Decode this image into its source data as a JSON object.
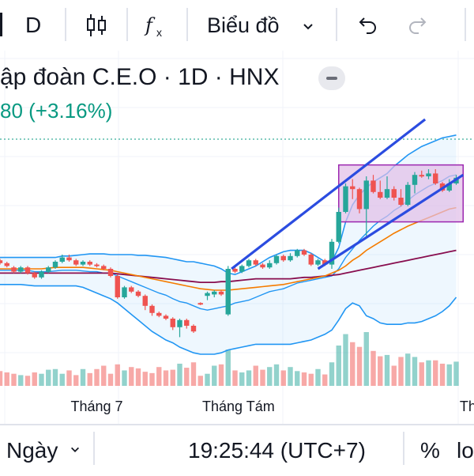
{
  "toolbar": {
    "interval": "D",
    "chart_menu_label": "Biểu đồ"
  },
  "legend": {
    "title": "ập đoàn C.E.O · 1D · HNX",
    "change": "80 (+3.16%)"
  },
  "bottom_bar": {
    "range_label": "Ngày",
    "clock": "19:25:44 (UTC+7)",
    "percent_label": "%",
    "log_label": "lo"
  },
  "colors": {
    "up": "#26a69a",
    "down": "#ef5350",
    "bollinger": "#2196f3",
    "channel": "#2b4ce0",
    "ma_orange": "#f57c00",
    "ma_maroon": "#880e4f",
    "box_fill": "#e1bee7",
    "box_border": "#9c27b0"
  },
  "chart_data": {
    "type": "candlestick",
    "title": "ập đoàn C.E.O · 1D · HNX",
    "x_tick_labels": [
      "Tháng 7",
      "Tháng Tám",
      "Tháng"
    ],
    "candles": [
      [
        0.6,
        0.4,
        0.7,
        0.3
      ],
      [
        0.4,
        0.2,
        0.5,
        0.1
      ],
      [
        0.1,
        -0.2,
        0.2,
        -0.3
      ],
      [
        -0.2,
        0.1,
        0.2,
        -0.3
      ],
      [
        0.1,
        -0.3,
        0.2,
        -0.4
      ],
      [
        -0.3,
        -0.6,
        -0.2,
        -0.7
      ],
      [
        -0.6,
        -0.2,
        -0.1,
        -0.7
      ],
      [
        -0.2,
        0.1,
        0.2,
        -0.3
      ],
      [
        0.1,
        0.5,
        0.6,
        0.0
      ],
      [
        0.5,
        0.8,
        1.0,
        0.4
      ],
      [
        0.8,
        0.6,
        1.0,
        0.5
      ],
      [
        0.6,
        0.3,
        0.7,
        0.2
      ],
      [
        0.3,
        0.5,
        0.6,
        0.2
      ],
      [
        0.5,
        0.3,
        0.6,
        0.2
      ],
      [
        0.3,
        0.2,
        0.4,
        0.1
      ],
      [
        0.2,
        0.0,
        0.3,
        -0.1
      ],
      [
        0.0,
        -0.5,
        0.1,
        -0.6
      ],
      [
        -0.5,
        -2.0,
        -0.4,
        -2.1
      ],
      [
        -2.0,
        -1.3,
        -1.2,
        -2.1
      ],
      [
        -1.3,
        -1.6,
        -1.2,
        -1.7
      ],
      [
        -1.6,
        -1.9,
        -1.5,
        -2.0
      ],
      [
        -1.9,
        -2.6,
        -1.8,
        -2.9
      ],
      [
        -2.6,
        -3.1,
        -2.5,
        -3.3
      ],
      [
        -3.1,
        -3.3,
        -3.0,
        -3.4
      ],
      [
        -3.3,
        -3.5,
        -3.2,
        -3.6
      ],
      [
        -3.5,
        -4.1,
        -3.4,
        -4.3
      ],
      [
        -4.1,
        -3.6,
        -3.5,
        -4.8
      ],
      [
        -3.6,
        -4.0,
        -3.5,
        -4.2
      ],
      [
        -4.0,
        -4.4,
        -3.9,
        -4.5
      ],
      [
        -2.4,
        -2.5,
        -2.35,
        -2.55
      ],
      [
        -1.9,
        -1.7,
        -1.6,
        -2.2
      ],
      [
        -1.8,
        -1.6,
        -1.5,
        -2.0
      ],
      [
        -1.6,
        -1.8,
        -1.5,
        -1.9
      ],
      [
        -3.2,
        0.0,
        0.2,
        -3.3
      ],
      [
        0.0,
        -0.2,
        0.1,
        -0.3
      ],
      [
        -0.2,
        0.2,
        0.3,
        -0.3
      ],
      [
        0.2,
        0.6,
        0.7,
        0.1
      ],
      [
        0.6,
        0.3,
        0.7,
        0.2
      ],
      [
        0.3,
        0.1,
        0.4,
        0.0
      ],
      [
        0.1,
        0.4,
        0.6,
        0.0
      ],
      [
        0.4,
        0.9,
        1.0,
        0.3
      ],
      [
        0.9,
        0.6,
        1.0,
        0.5
      ],
      [
        0.6,
        0.9,
        1.1,
        0.5
      ],
      [
        0.9,
        1.3,
        1.4,
        0.8
      ],
      [
        1.3,
        1.0,
        1.4,
        0.9
      ],
      [
        1.0,
        0.3,
        1.1,
        0.2
      ],
      [
        0.3,
        0.6,
        0.7,
        0.2
      ],
      [
        0.6,
        0.3,
        0.7,
        0.2
      ],
      [
        0.3,
        1.9,
        2.1,
        0.0
      ],
      [
        1.9,
        4.0,
        4.3,
        1.8
      ],
      [
        4.0,
        5.8,
        6.0,
        3.9
      ],
      [
        5.8,
        5.6,
        6.3,
        4.9
      ],
      [
        5.6,
        4.2,
        5.7,
        3.9
      ],
      [
        4.2,
        6.2,
        6.5,
        2.3
      ],
      [
        6.2,
        5.4,
        6.6,
        5.3
      ],
      [
        5.4,
        5.0,
        6.2,
        4.9
      ],
      [
        5.0,
        5.6,
        6.5,
        4.9
      ],
      [
        5.6,
        5.0,
        5.8,
        4.8
      ],
      [
        5.0,
        4.5,
        5.6,
        4.4
      ],
      [
        4.5,
        5.9,
        6.1,
        4.4
      ],
      [
        5.9,
        6.6,
        6.8,
        5.3
      ],
      [
        6.6,
        6.5,
        6.9,
        6.4
      ],
      [
        6.5,
        6.7,
        7.0,
        6.3
      ],
      [
        6.7,
        6.0,
        7.0,
        5.9
      ],
      [
        6.0,
        5.5,
        6.1,
        5.4
      ],
      [
        5.5,
        6.0,
        6.3,
        5.4
      ],
      [
        6.0,
        6.4,
        6.6,
        5.9
      ]
    ],
    "volume": [
      2.2,
      2.0,
      1.8,
      1.6,
      1.5,
      2.0,
      1.8,
      2.4,
      2.5,
      1.8,
      2.3,
      1.6,
      2.5,
      1.9,
      2.5,
      3.0,
      1.8,
      3.2,
      2.3,
      2.8,
      2.6,
      2.1,
      1.9,
      2.8,
      2.3,
      2.4,
      3.3,
      2.7,
      3.5,
      1.5,
      1.8,
      3.0,
      3.2,
      5.4,
      2.3,
      2.0,
      2.3,
      3.0,
      2.4,
      2.8,
      3.2,
      2.3,
      2.8,
      2.2,
      2.0,
      1.8,
      2.5,
      1.7,
      3.5,
      6.0,
      7.7,
      6.5,
      5.8,
      8.0,
      5.2,
      4.4,
      4.6,
      3.0,
      4.3,
      4.8,
      4.3,
      3.5,
      3.8,
      3.8,
      3.3,
      3.2,
      3.6
    ],
    "bollinger_upper": [
      0.8,
      0.8,
      0.8,
      0.8,
      0.8,
      0.8,
      0.8,
      0.8,
      0.8,
      0.9,
      0.9,
      0.95,
      1.0,
      1.05,
      1.05,
      1.05,
      1.0,
      1.0,
      1.0,
      1.0,
      0.95,
      0.95,
      0.9,
      0.85,
      0.8,
      0.7,
      0.6,
      0.5,
      0.5,
      0.4,
      0.3,
      0.2,
      0.0,
      -0.3,
      -0.4,
      -0.2,
      0.0,
      0.2,
      0.5,
      0.8,
      1.0,
      1.2,
      1.3,
      1.3,
      1.3,
      1.1,
      0.8,
      0.5,
      0.5,
      1.5,
      3.3,
      4.5,
      5.2,
      5.7,
      6.1,
      6.4,
      6.7,
      7.2,
      7.6,
      8.0,
      8.3,
      8.6,
      8.8,
      9.0,
      9.2,
      9.3,
      9.4
    ],
    "bollinger_mid": [
      -0.1,
      -0.1,
      -0.1,
      -0.1,
      -0.1,
      -0.2,
      -0.2,
      -0.2,
      -0.15,
      -0.1,
      -0.1,
      -0.1,
      -0.15,
      -0.2,
      -0.2,
      -0.3,
      -0.3,
      -0.5,
      -0.7,
      -0.9,
      -1.1,
      -1.3,
      -1.5,
      -1.7,
      -1.85,
      -2.1,
      -2.3,
      -2.4,
      -2.6,
      -2.8,
      -2.9,
      -2.8,
      -2.7,
      -2.6,
      -2.4,
      -2.3,
      -2.2,
      -2.0,
      -1.8,
      -1.6,
      -1.5,
      -1.4,
      -1.2,
      -1.0,
      -0.9,
      -0.8,
      -0.7,
      -0.6,
      -0.5,
      0.0,
      0.8,
      1.4,
      2.0,
      2.5,
      3.0,
      3.4,
      3.7,
      4.1,
      4.4,
      4.8,
      5.2,
      5.5,
      5.8,
      6.0,
      6.2,
      6.5,
      6.6
    ],
    "bollinger_lower": [
      -1.1,
      -1.1,
      -1.1,
      -1.1,
      -1.15,
      -1.2,
      -1.2,
      -1.2,
      -1.2,
      -1.2,
      -1.2,
      -1.2,
      -1.3,
      -1.5,
      -1.7,
      -1.9,
      -2.1,
      -2.4,
      -2.8,
      -3.2,
      -3.6,
      -4.0,
      -4.4,
      -4.7,
      -5.0,
      -5.2,
      -5.5,
      -5.7,
      -5.9,
      -6.0,
      -6.0,
      -6.0,
      -5.9,
      -5.7,
      -5.6,
      -5.5,
      -5.4,
      -5.3,
      -5.3,
      -5.3,
      -5.3,
      -5.3,
      -5.3,
      -5.2,
      -5.1,
      -5.0,
      -4.8,
      -4.6,
      -4.3,
      -3.6,
      -2.8,
      -2.4,
      -2.6,
      -3.3,
      -3.5,
      -3.8,
      -3.9,
      -3.9,
      -3.9,
      -3.8,
      -3.8,
      -3.7,
      -3.5,
      -3.3,
      -3.0,
      -2.6,
      -2.0
    ],
    "ma_orange": [
      0.0,
      0.0,
      0.0,
      0.0,
      0.0,
      0.0,
      0.0,
      0.05,
      0.1,
      0.1,
      0.1,
      0.1,
      0.1,
      0.05,
      0.0,
      -0.05,
      -0.1,
      -0.2,
      -0.3,
      -0.4,
      -0.5,
      -0.6,
      -0.7,
      -0.8,
      -0.9,
      -1.0,
      -1.1,
      -1.2,
      -1.3,
      -1.4,
      -1.45,
      -1.5,
      -1.5,
      -1.5,
      -1.45,
      -1.4,
      -1.35,
      -1.3,
      -1.25,
      -1.2,
      -1.15,
      -1.1,
      -1.0,
      -0.9,
      -0.8,
      -0.7,
      -0.6,
      -0.5,
      -0.3,
      -0.1,
      0.2,
      0.6,
      0.9,
      1.3,
      1.6,
      1.9,
      2.2,
      2.5,
      2.75,
      3.0,
      3.2,
      3.4,
      3.6,
      3.8,
      4.0,
      4.2,
      4.3
    ],
    "ma_maroon": [
      -0.3,
      -0.3,
      -0.3,
      -0.3,
      -0.3,
      -0.3,
      -0.3,
      -0.3,
      -0.3,
      -0.3,
      -0.3,
      -0.3,
      -0.3,
      -0.3,
      -0.3,
      -0.3,
      -0.3,
      -0.35,
      -0.4,
      -0.45,
      -0.5,
      -0.55,
      -0.6,
      -0.65,
      -0.7,
      -0.75,
      -0.8,
      -0.85,
      -0.9,
      -0.95,
      -0.95,
      -0.95,
      -0.9,
      -0.9,
      -0.85,
      -0.8,
      -0.75,
      -0.7,
      -0.7,
      -0.7,
      -0.7,
      -0.7,
      -0.7,
      -0.65,
      -0.6,
      -0.6,
      -0.55,
      -0.5,
      -0.45,
      -0.4,
      -0.3,
      -0.2,
      -0.1,
      0.0,
      0.1,
      0.2,
      0.3,
      0.4,
      0.5,
      0.6,
      0.7,
      0.8,
      0.9,
      1.0,
      1.1,
      1.2,
      1.3
    ],
    "channel": {
      "upper": [
        [
          33.5,
          0.0
        ],
        [
          61.5,
          10.5
        ]
      ],
      "lower": [
        [
          46.0,
          0.0
        ],
        [
          67.0,
          6.6
        ]
      ]
    },
    "range_box": {
      "x": [
        49.0,
        67.0
      ],
      "y": [
        3.3,
        7.3
      ]
    }
  }
}
